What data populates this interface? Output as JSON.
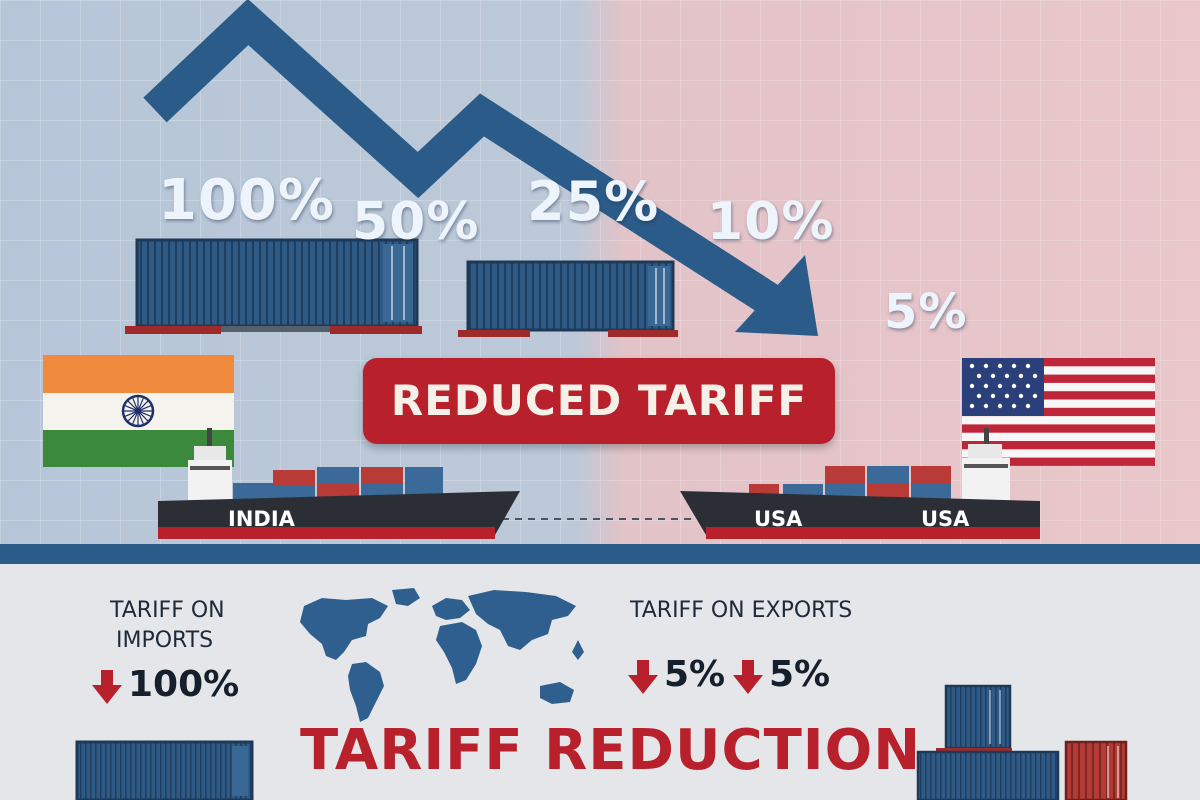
{
  "percent_steps": [
    "100%",
    "50%",
    "25%",
    "10%",
    "5%"
  ],
  "banner": "REDUCED TARIFF",
  "ships": {
    "left": "INDIA",
    "right_1": "USA",
    "right_2": "USA"
  },
  "imports": {
    "caption_line1": "TARIFF ON",
    "caption_line2": "IMPORTS",
    "value": "100%"
  },
  "exports": {
    "caption": "TARIFF ON EXPORTS",
    "value_1": "5%",
    "value_2": "5%"
  },
  "footer_title": "TARIFF REDUCTION",
  "icons": {
    "trend": "downward-trend-arrow-icon",
    "flag_left": "india-flag-icon",
    "flag_right": "usa-flag-icon",
    "map": "world-map-icon",
    "down": "red-down-arrow-icon"
  },
  "colors": {
    "left_bg": "#b6c6d8",
    "right_bg": "#e6c4c8",
    "arrow": "#2b5b88",
    "accent_red": "#b8212b",
    "container_blue": "#2f5a86",
    "container_red": "#b33a35"
  }
}
